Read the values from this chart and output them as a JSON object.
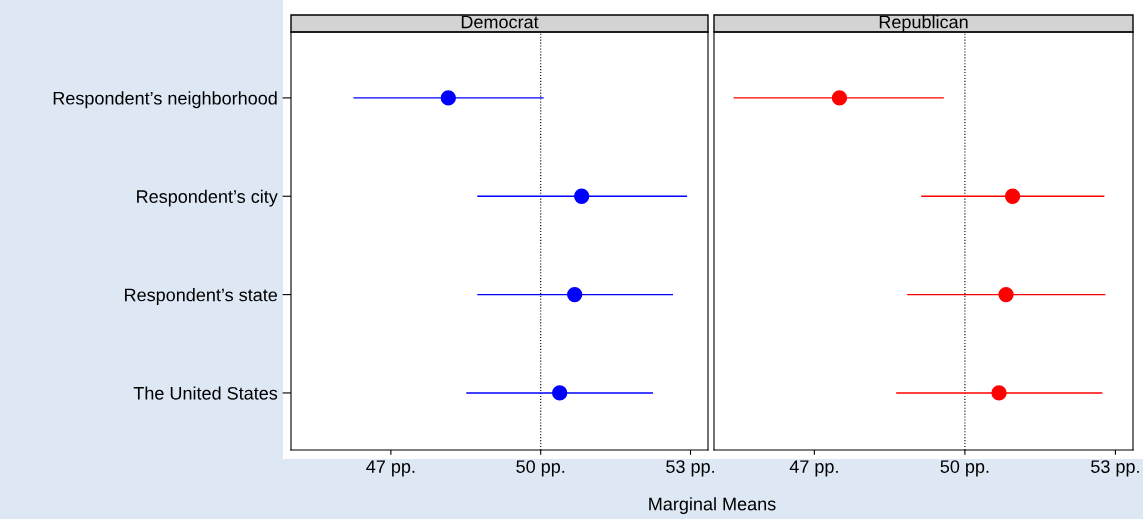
{
  "chart_data": [
    {
      "type": "scatter",
      "title": "Democrat",
      "xlabel": "Marginal Means",
      "orientation": "horizontal",
      "categories": [
        "Respondent’s neighborhood",
        "Respondent’s city",
        "Respondent’s state",
        "The United States"
      ],
      "series": [
        {
          "color": "#0000ff",
          "values": [
            48.15,
            50.82,
            50.68,
            50.38
          ],
          "errors": [
            [
              46.25,
              50.06
            ],
            [
              48.73,
              52.93
            ],
            [
              48.73,
              52.65
            ],
            [
              48.51,
              52.25
            ]
          ]
        }
      ],
      "xlim": [
        45,
        53.35
      ],
      "xticks": [
        {
          "value": 47,
          "label": "47 pp."
        },
        {
          "value": 50,
          "label": "50 pp."
        },
        {
          "value": 53,
          "label": "53 pp."
        }
      ],
      "ref_lines": [
        {
          "axis": "x",
          "value": 50,
          "line_style": "dotted",
          "color": "#000000"
        }
      ],
      "marker": "circle",
      "grid": false
    },
    {
      "type": "scatter",
      "title": "Republican",
      "orientation": "horizontal",
      "categories": [
        null,
        null,
        null,
        null
      ],
      "series": [
        {
          "color": "#ff0000",
          "values": [
            47.5,
            50.95,
            50.82,
            50.68
          ],
          "errors": [
            [
              45.39,
              49.58
            ],
            [
              49.13,
              52.78
            ],
            [
              48.85,
              52.8
            ],
            [
              48.63,
              52.74
            ]
          ]
        }
      ],
      "xlim": [
        45,
        53.35
      ],
      "xticks": [
        {
          "value": 47,
          "label": "47 pp."
        },
        {
          "value": 50,
          "label": "50 pp."
        },
        {
          "value": 53,
          "label": "53 pp."
        }
      ],
      "ref_lines": [
        {
          "axis": "x",
          "value": 50,
          "line_style": "dotted",
          "color": "#000000"
        }
      ],
      "marker": "circle",
      "grid": false,
      "tick_labels": "x"
    }
  ]
}
